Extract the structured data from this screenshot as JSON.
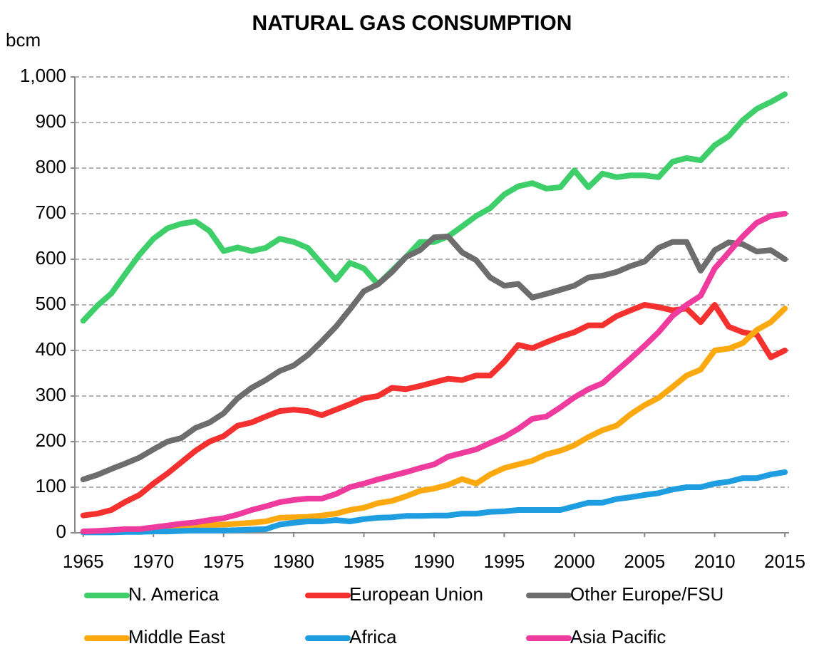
{
  "chart_data": {
    "type": "line",
    "title": "NATURAL GAS CONSUMPTION",
    "y_label": "bcm",
    "x": [
      1965,
      1966,
      1967,
      1968,
      1969,
      1970,
      1971,
      1972,
      1973,
      1974,
      1975,
      1976,
      1977,
      1978,
      1979,
      1980,
      1981,
      1982,
      1983,
      1984,
      1985,
      1986,
      1987,
      1988,
      1989,
      1990,
      1991,
      1992,
      1993,
      1994,
      1995,
      1996,
      1997,
      1998,
      1999,
      2000,
      2001,
      2002,
      2003,
      2004,
      2005,
      2006,
      2007,
      2008,
      2009,
      2010,
      2011,
      2012,
      2013,
      2014,
      2015
    ],
    "xlim": [
      1964.4,
      2015.3
    ],
    "xticks": [
      1965,
      1970,
      1975,
      1980,
      1985,
      1990,
      1995,
      2000,
      2005,
      2010,
      2015
    ],
    "ylim": [
      0,
      1000
    ],
    "yticks": [
      0,
      100,
      200,
      300,
      400,
      500,
      600,
      700,
      800,
      900,
      {
        "value": 1000,
        "label": "1,000"
      }
    ],
    "grid": true,
    "series": [
      {
        "name": "N. America",
        "color": "#3ecf6a",
        "values": [
          465,
          498,
          525,
          568,
          610,
          645,
          668,
          678,
          683,
          662,
          618,
          626,
          618,
          625,
          645,
          638,
          625,
          590,
          555,
          592,
          580,
          545,
          575,
          605,
          638,
          638,
          650,
          672,
          695,
          712,
          742,
          760,
          767,
          755,
          758,
          795,
          758,
          788,
          780,
          784,
          784,
          780,
          814,
          822,
          817,
          850,
          870,
          905,
          930,
          945,
          962
        ]
      },
      {
        "name": "European Union",
        "color": "#f5312f",
        "values": [
          38,
          42,
          50,
          68,
          83,
          108,
          130,
          155,
          180,
          200,
          212,
          235,
          242,
          255,
          267,
          270,
          267,
          258,
          270,
          282,
          295,
          300,
          318,
          315,
          322,
          330,
          338,
          335,
          345,
          345,
          375,
          412,
          405,
          418,
          430,
          440,
          455,
          455,
          475,
          488,
          500,
          495,
          488,
          492,
          462,
          500,
          452,
          440,
          435,
          385,
          400
        ]
      },
      {
        "name": "Other Europe/FSU",
        "color": "#6d6d6d",
        "values": [
          117,
          127,
          140,
          152,
          165,
          183,
          200,
          208,
          230,
          242,
          262,
          295,
          318,
          335,
          355,
          367,
          390,
          420,
          452,
          490,
          530,
          545,
          572,
          605,
          620,
          648,
          650,
          615,
          598,
          560,
          542,
          546,
          516,
          524,
          533,
          542,
          560,
          564,
          572,
          585,
          595,
          625,
          638,
          638,
          575,
          620,
          637,
          633,
          617,
          620,
          600
        ]
      },
      {
        "name": "Middle East",
        "color": "#fba90f",
        "values": [
          2,
          3,
          4,
          5,
          6,
          8,
          10,
          12,
          15,
          17,
          18,
          20,
          22,
          25,
          33,
          34,
          35,
          38,
          42,
          50,
          55,
          65,
          70,
          80,
          92,
          97,
          105,
          118,
          108,
          128,
          142,
          150,
          158,
          172,
          180,
          192,
          210,
          225,
          235,
          260,
          280,
          296,
          320,
          345,
          358,
          400,
          404,
          416,
          445,
          462,
          492
        ]
      },
      {
        "name": "Africa",
        "color": "#1e9de0",
        "values": [
          1,
          1,
          1,
          2,
          2,
          3,
          3,
          4,
          5,
          5,
          5,
          6,
          7,
          8,
          18,
          22,
          25,
          25,
          28,
          25,
          30,
          33,
          34,
          37,
          37,
          38,
          38,
          42,
          42,
          46,
          47,
          50,
          50,
          50,
          50,
          58,
          66,
          66,
          74,
          78,
          83,
          87,
          95,
          100,
          100,
          108,
          112,
          120,
          120,
          128,
          133
        ]
      },
      {
        "name": "Asia Pacific",
        "color": "#ef3b9e",
        "values": [
          3,
          4,
          6,
          8,
          8,
          12,
          16,
          20,
          23,
          28,
          32,
          40,
          50,
          58,
          67,
          72,
          75,
          75,
          85,
          100,
          108,
          117,
          125,
          133,
          142,
          150,
          167,
          175,
          183,
          197,
          210,
          228,
          250,
          255,
          275,
          297,
          315,
          328,
          355,
          382,
          410,
          440,
          476,
          500,
          520,
          580,
          615,
          650,
          680,
          695,
          700
        ]
      }
    ]
  }
}
